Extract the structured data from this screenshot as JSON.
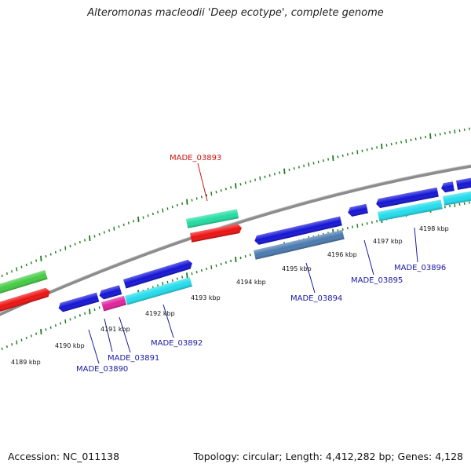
{
  "title": "Alteromonas macleodii 'Deep ecotype', complete genome",
  "footer": {
    "accession": "Accession: NC_011138",
    "topology": "Topology: circular; Length: 4,412,282 bp; Genes: 4,128"
  },
  "kbp_labels": [
    "4189 kbp",
    "4190 kbp",
    "4191 kbp",
    "4192 kbp",
    "4193 kbp",
    "4194 kbp",
    "4195 kbp",
    "4196 kbp",
    "4197 kbp",
    "4198 kbp"
  ],
  "gene_labels": [
    "MADE_03890",
    "MADE_03891",
    "MADE_03892",
    "MADE_03893",
    "MADE_03894",
    "MADE_03895",
    "MADE_03896"
  ],
  "colors": {
    "backbone": "#8c8c8c",
    "tick": "#1e7a1e",
    "label_blue": "#1a1aa6",
    "label_red": "#cc1111",
    "gene_blue": "#1414d6",
    "gene_cyan": "#22dcec",
    "gene_red": "#ee1111",
    "gene_green": "#44cc44",
    "gene_teal": "#22dca0",
    "gene_magenta": "#e0229e",
    "gene_steel": "#4a7ab0"
  }
}
